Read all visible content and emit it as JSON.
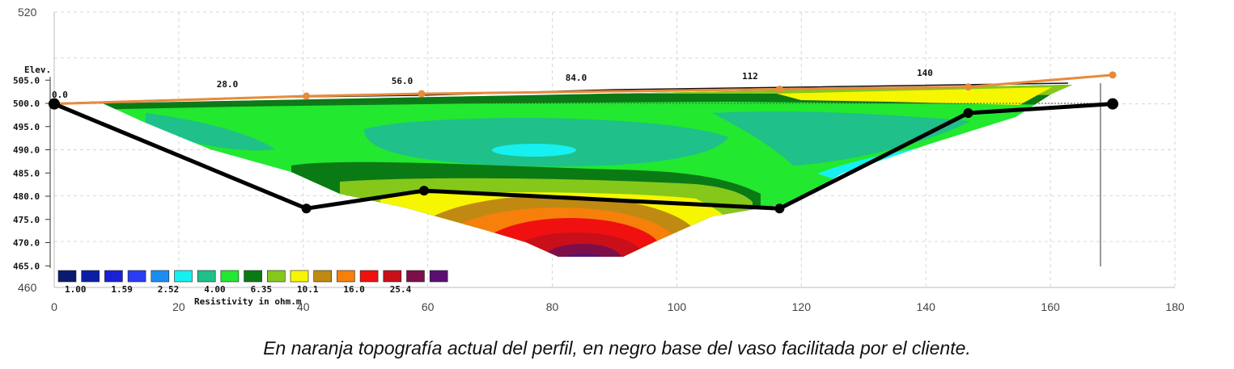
{
  "chart_data": {
    "type": "line",
    "xlim": [
      0,
      180
    ],
    "ylim": [
      460,
      520
    ],
    "x_ticks": [
      "0",
      "20",
      "40",
      "60",
      "80",
      "100",
      "120",
      "140",
      "160",
      "180"
    ],
    "y_ticks": [
      "460",
      "520"
    ],
    "grid": true,
    "series": [
      {
        "color": "#e88a3c",
        "points": [
          [
            0,
            500
          ],
          [
            40.5,
            501.7
          ],
          [
            59,
            502.2
          ],
          [
            116.5,
            503.2
          ],
          [
            146.8,
            503.7
          ],
          [
            170,
            506.3
          ]
        ]
      },
      {
        "color": "#000000",
        "points": [
          [
            0,
            500
          ],
          [
            40.5,
            477.2
          ],
          [
            59.4,
            481.1
          ],
          [
            116.5,
            477.2
          ],
          [
            146.8,
            498
          ],
          [
            170,
            500
          ]
        ]
      }
    ],
    "inner_plot": {
      "elev_label": "Elev.",
      "elev_ticks": [
        "505.0",
        "500.0",
        "495.0",
        "490.0",
        "485.0",
        "480.0",
        "475.0",
        "470.0",
        "465.0"
      ],
      "distance_ticks": [
        "0.0",
        "28.0",
        "56.0",
        "84.0",
        "112",
        "140"
      ],
      "legend_title": "Resistivity in ohm.m",
      "legend_labels": [
        "1.00",
        "1.59",
        "2.52",
        "4.00",
        "6.35",
        "10.1",
        "16.0",
        "25.4"
      ],
      "legend_colors": [
        "#0a1a6e",
        "#0c1fa4",
        "#1a1fd8",
        "#2a3cf5",
        "#1c8df0",
        "#16f0f0",
        "#1fc08a",
        "#22e830",
        "#0a7a14",
        "#86c81a",
        "#f6f600",
        "#c08a12",
        "#f6800a",
        "#f01010",
        "#c80f1a",
        "#7c0f4a",
        "#5a1070"
      ]
    }
  },
  "caption": "En naranja topografía actual del perfil, en negro base del vaso facilitada por el cliente."
}
